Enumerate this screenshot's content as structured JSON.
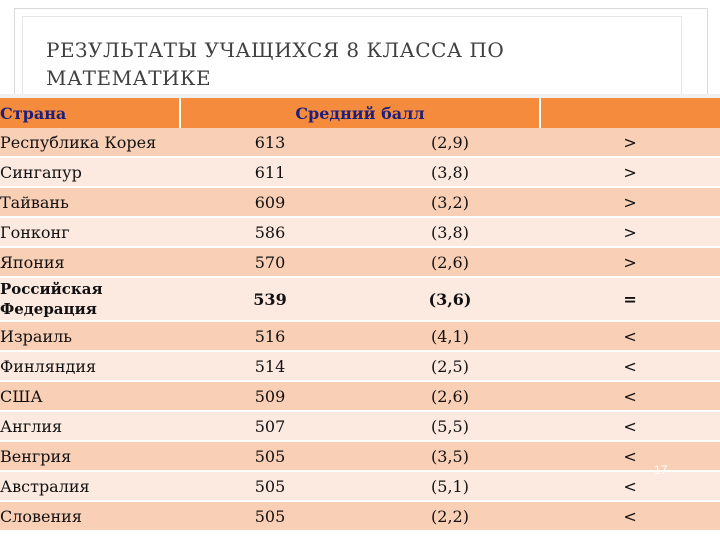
{
  "slide": {
    "title": "РЕЗУЛЬТАТЫ УЧАЩИХСЯ 8 КЛАССА ПО МАТЕМАТИКЕ",
    "page_number": "17"
  },
  "table": {
    "headers": [
      "Страна",
      "Средний балл",
      "",
      ""
    ],
    "rows": [
      {
        "country": "Республика Корея",
        "score": "613",
        "se": "(2,9)",
        "cmp": ">"
      },
      {
        "country": "Сингапур",
        "score": "611",
        "se": "(3,8)",
        "cmp": ">"
      },
      {
        "country": "Тайвань",
        "score": "609",
        "se": "(3,2)",
        "cmp": ">"
      },
      {
        "country": "Гонконг",
        "score": "586",
        "se": "(3,8)",
        "cmp": ">"
      },
      {
        "country": "Япония",
        "score": "570",
        "se": "(2,6)",
        "cmp": ">"
      },
      {
        "country": "Российская Федерация",
        "score": "539",
        "se": "(3,6)",
        "cmp": "="
      },
      {
        "country": "Израиль",
        "score": "516",
        "se": "(4,1)",
        "cmp": "<"
      },
      {
        "country": "Финляндия",
        "score": "514",
        "se": "(2,5)",
        "cmp": "<"
      },
      {
        "country": "США",
        "score": "509",
        "se": "(2,6)",
        "cmp": "<"
      },
      {
        "country": "Англия",
        "score": "507",
        "se": "(5,5)",
        "cmp": "<"
      },
      {
        "country": "Венгрия",
        "score": "505",
        "se": "(3,5)",
        "cmp": "<"
      },
      {
        "country": "Австралия",
        "score": "505",
        "se": "(5,1)",
        "cmp": "<"
      },
      {
        "country": "Словения",
        "score": "505",
        "se": "(2,2)",
        "cmp": "<"
      }
    ]
  },
  "colors": {
    "header_bg": "#f58c3d",
    "header_text": "#1f1f7a",
    "row_dark": "#f9cfb6",
    "row_light": "#fce9e0"
  }
}
